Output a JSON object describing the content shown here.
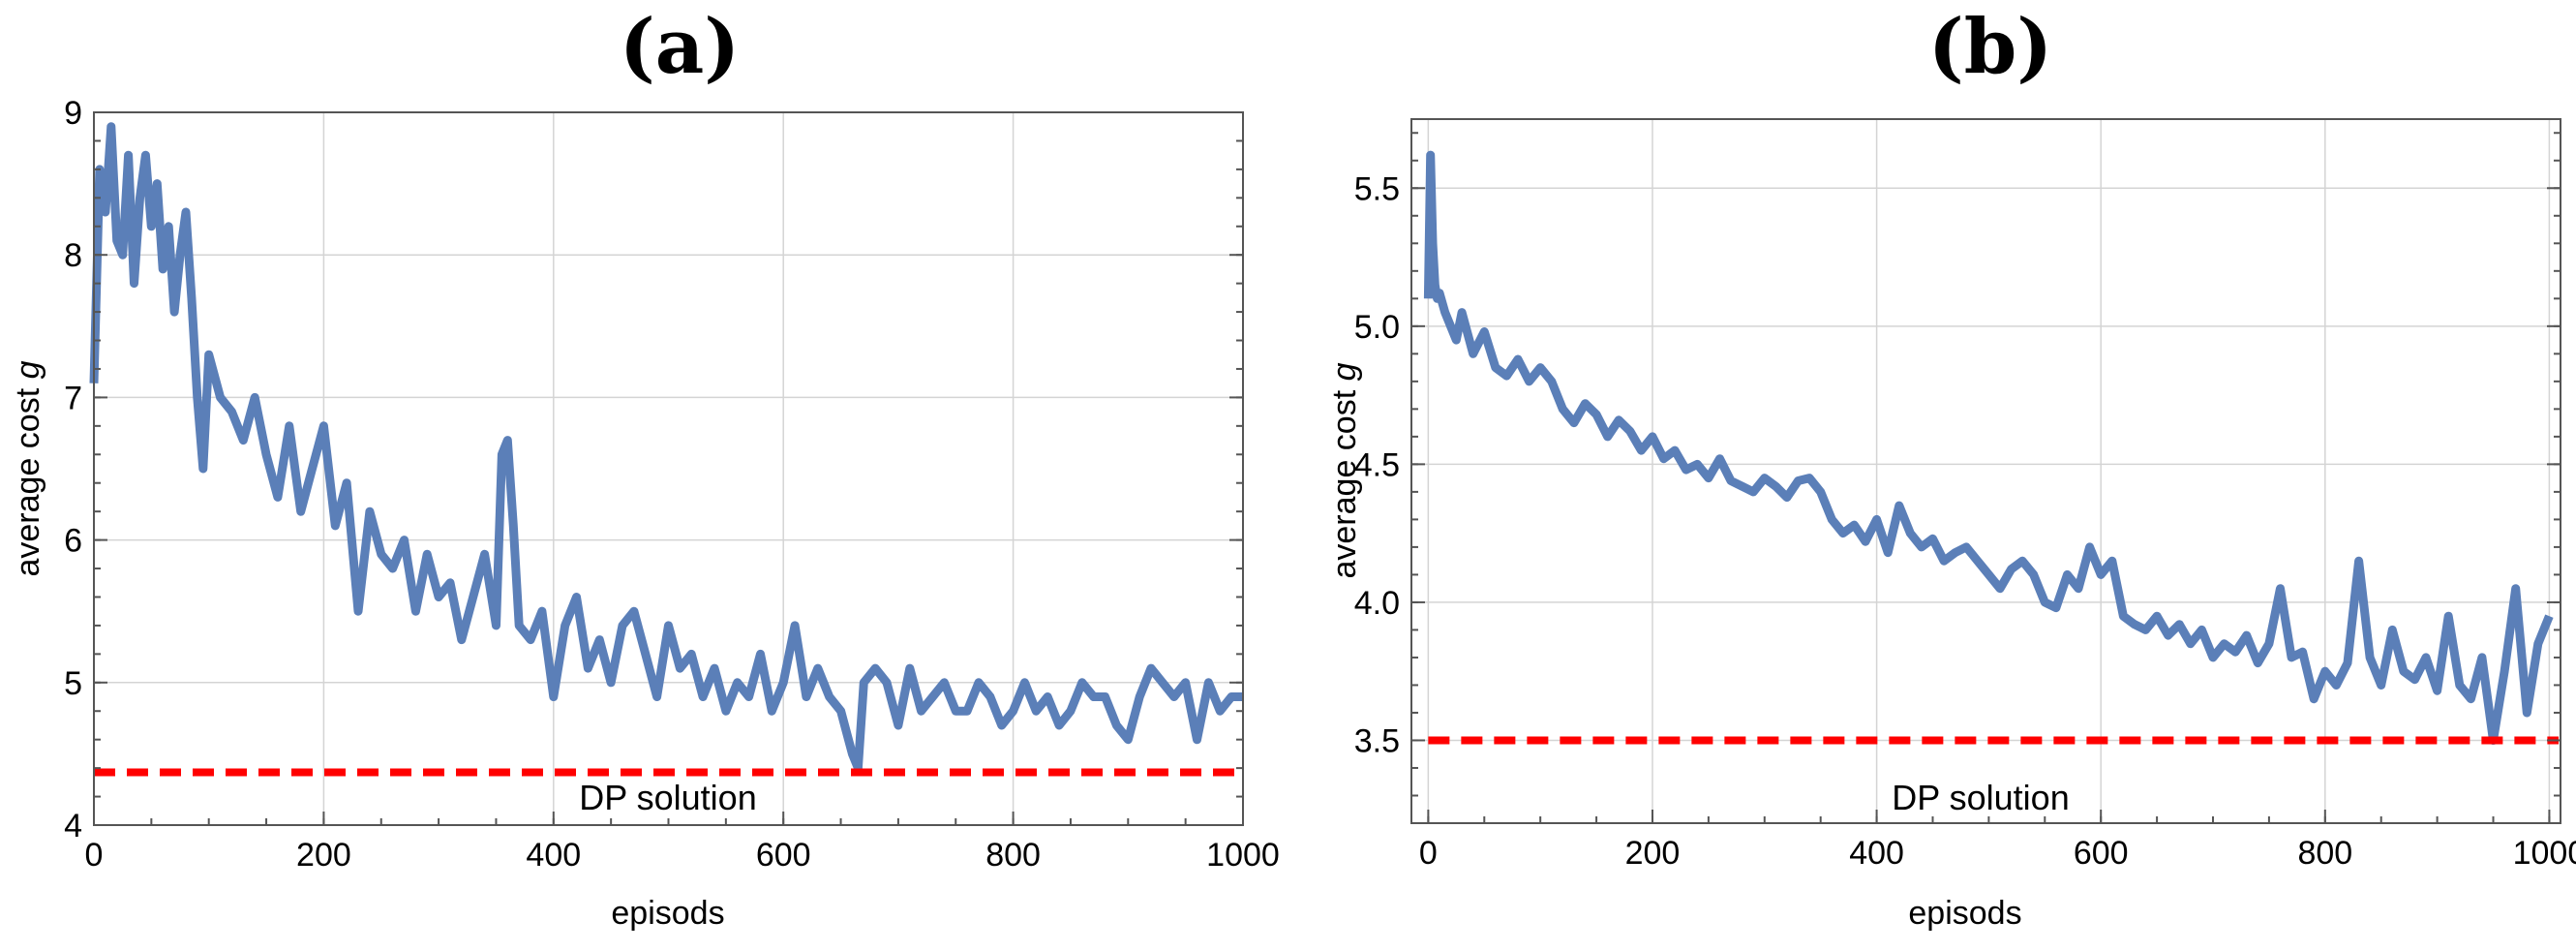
{
  "chart_data": [
    {
      "type": "line",
      "panel": "(a)",
      "xlabel": "episods",
      "ylabel_prefix": "average cost ",
      "ylabel_var": "g",
      "xlim": [
        0,
        1000
      ],
      "ylim": [
        4,
        9
      ],
      "xticks": [
        0,
        200,
        400,
        600,
        800,
        1000
      ],
      "xtick_labels": [
        "0",
        "200",
        "400",
        "600",
        "800",
        "1000"
      ],
      "yticks": [
        4,
        5,
        6,
        7,
        8,
        9
      ],
      "ytick_labels": [
        "4",
        "5",
        "6",
        "7",
        "8",
        "9"
      ],
      "grid": true,
      "dp_value": 4.37,
      "dp_label": "DP solution",
      "series": [
        {
          "name": "average cost",
          "color": "#5b7fb8",
          "x": [
            0,
            5,
            10,
            15,
            20,
            25,
            30,
            35,
            40,
            45,
            50,
            55,
            60,
            65,
            70,
            75,
            80,
            85,
            90,
            95,
            100,
            110,
            120,
            130,
            140,
            150,
            160,
            170,
            180,
            190,
            200,
            210,
            220,
            230,
            240,
            250,
            260,
            270,
            280,
            290,
            300,
            310,
            320,
            330,
            340,
            350,
            355,
            360,
            365,
            370,
            380,
            390,
            400,
            410,
            420,
            430,
            440,
            450,
            460,
            470,
            480,
            490,
            500,
            510,
            520,
            530,
            540,
            550,
            560,
            570,
            580,
            590,
            600,
            610,
            620,
            630,
            640,
            650,
            660,
            665,
            670,
            680,
            690,
            700,
            710,
            720,
            730,
            740,
            750,
            760,
            770,
            780,
            790,
            800,
            810,
            820,
            830,
            840,
            850,
            860,
            870,
            880,
            890,
            900,
            910,
            920,
            930,
            940,
            950,
            960,
            970,
            980,
            990,
            1000
          ],
          "values": [
            7.1,
            8.6,
            8.3,
            8.9,
            8.1,
            8.0,
            8.7,
            7.8,
            8.4,
            8.7,
            8.2,
            8.5,
            7.9,
            8.2,
            7.6,
            8.0,
            8.3,
            7.7,
            7.0,
            6.5,
            7.3,
            7.0,
            6.9,
            6.7,
            7.0,
            6.6,
            6.3,
            6.8,
            6.2,
            6.5,
            6.8,
            6.1,
            6.4,
            5.5,
            6.2,
            5.9,
            5.8,
            6.0,
            5.5,
            5.9,
            5.6,
            5.7,
            5.3,
            5.6,
            5.9,
            5.4,
            6.6,
            6.7,
            6.1,
            5.4,
            5.3,
            5.5,
            4.9,
            5.4,
            5.6,
            5.1,
            5.3,
            5.0,
            5.4,
            5.5,
            5.2,
            4.9,
            5.4,
            5.1,
            5.2,
            4.9,
            5.1,
            4.8,
            5.0,
            4.9,
            5.2,
            4.8,
            5.0,
            5.4,
            4.9,
            5.1,
            4.9,
            4.8,
            4.5,
            4.4,
            5.0,
            5.1,
            5.0,
            4.7,
            5.1,
            4.8,
            4.9,
            5.0,
            4.8,
            4.8,
            5.0,
            4.9,
            4.7,
            4.8,
            5.0,
            4.8,
            4.9,
            4.7,
            4.8,
            5.0,
            4.9,
            4.9,
            4.7,
            4.6,
            4.9,
            5.1,
            5.0,
            4.9,
            5.0,
            4.6,
            5.0,
            4.8,
            4.9,
            4.9
          ]
        }
      ]
    },
    {
      "type": "line",
      "panel": "(b)",
      "xlabel": "episods",
      "ylabel_prefix": "average cost ",
      "ylabel_var": "g",
      "xlim": [
        -15,
        1010
      ],
      "ylim": [
        3.2,
        5.75
      ],
      "xticks": [
        0,
        200,
        400,
        600,
        800,
        1000
      ],
      "xtick_labels": [
        "0",
        "200",
        "400",
        "600",
        "800",
        "1000"
      ],
      "yticks": [
        3.5,
        4.0,
        4.5,
        5.0,
        5.5
      ],
      "ytick_labels": [
        "3.5",
        "4.0",
        "4.5",
        "5.0",
        "5.5"
      ],
      "grid": true,
      "dp_value": 3.5,
      "dp_label": "DP solution",
      "series": [
        {
          "name": "average cost",
          "color": "#5b7fb8",
          "x": [
            0,
            2,
            4,
            6,
            8,
            10,
            15,
            20,
            25,
            30,
            40,
            50,
            60,
            70,
            80,
            90,
            100,
            110,
            120,
            130,
            140,
            150,
            160,
            170,
            180,
            190,
            200,
            210,
            220,
            230,
            240,
            250,
            260,
            270,
            280,
            290,
            300,
            310,
            320,
            330,
            340,
            350,
            360,
            370,
            380,
            390,
            400,
            410,
            420,
            430,
            440,
            450,
            460,
            470,
            480,
            490,
            500,
            510,
            520,
            530,
            540,
            550,
            560,
            570,
            580,
            590,
            600,
            610,
            620,
            630,
            640,
            650,
            660,
            670,
            680,
            690,
            700,
            710,
            720,
            730,
            740,
            750,
            760,
            770,
            780,
            790,
            800,
            810,
            820,
            830,
            840,
            850,
            860,
            870,
            880,
            890,
            900,
            910,
            920,
            930,
            940,
            950,
            960,
            970,
            980,
            990,
            1000
          ],
          "values": [
            5.1,
            5.62,
            5.3,
            5.15,
            5.1,
            5.12,
            5.05,
            5.0,
            4.95,
            5.05,
            4.9,
            4.98,
            4.85,
            4.82,
            4.88,
            4.8,
            4.85,
            4.8,
            4.7,
            4.65,
            4.72,
            4.68,
            4.6,
            4.66,
            4.62,
            4.55,
            4.6,
            4.52,
            4.55,
            4.48,
            4.5,
            4.45,
            4.52,
            4.44,
            4.42,
            4.4,
            4.45,
            4.42,
            4.38,
            4.44,
            4.45,
            4.4,
            4.3,
            4.25,
            4.28,
            4.22,
            4.3,
            4.18,
            4.35,
            4.25,
            4.2,
            4.23,
            4.15,
            4.18,
            4.2,
            4.15,
            4.1,
            4.05,
            4.12,
            4.15,
            4.1,
            4.0,
            3.98,
            4.1,
            4.05,
            4.2,
            4.1,
            4.15,
            3.95,
            3.92,
            3.9,
            3.95,
            3.88,
            3.92,
            3.85,
            3.9,
            3.8,
            3.85,
            3.82,
            3.88,
            3.78,
            3.85,
            4.05,
            3.8,
            3.82,
            3.65,
            3.75,
            3.7,
            3.78,
            4.15,
            3.8,
            3.7,
            3.9,
            3.75,
            3.72,
            3.8,
            3.68,
            3.95,
            3.7,
            3.65,
            3.8,
            3.5,
            3.75,
            4.05,
            3.6,
            3.85,
            3.95
          ]
        }
      ]
    }
  ]
}
